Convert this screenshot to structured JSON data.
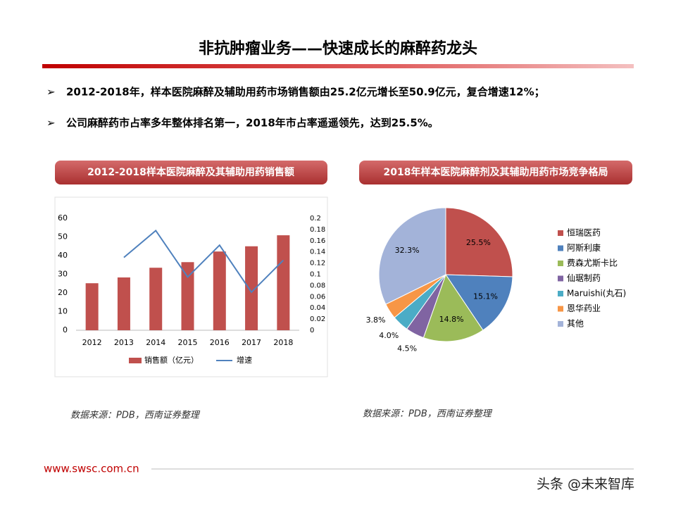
{
  "title": "非抗肿瘤业务——快速成长的麻醉药龙头",
  "bullets": [
    "2012-2018年，样本医院麻醉及辅助用药市场销售额由25.2亿元增长至50.9亿元，复合增速12%；",
    "公司麻醉药市占率多年整体排名第一，2018年市占率遥遥领先，达到25.5%。"
  ],
  "chart_data": [
    {
      "type": "bar",
      "title": "2012-2018样本医院麻醉及其辅助用药销售额",
      "categories": [
        "2012",
        "2013",
        "2014",
        "2015",
        "2016",
        "2017",
        "2018"
      ],
      "series": [
        {
          "name": "销售额（亿元）",
          "color": "#c0504d",
          "values": [
            25.2,
            28.3,
            33.5,
            36.5,
            42.2,
            45.0,
            50.9
          ]
        },
        {
          "name": "增速",
          "color": "#4f81bd",
          "axis": "y2",
          "type": "line",
          "values": [
            null,
            0.13,
            0.178,
            0.095,
            0.152,
            0.068,
            0.125
          ]
        }
      ],
      "ylim": [
        0,
        60
      ],
      "yticks": [
        0,
        10,
        20,
        30,
        40,
        50,
        60
      ],
      "y2lim": [
        0,
        0.2
      ],
      "y2ticks": [
        0,
        0.02,
        0.04,
        0.06,
        0.08,
        0.1,
        0.12,
        0.14,
        0.16,
        0.18,
        0.2
      ],
      "source": "数据来源：PDB，西南证券整理"
    },
    {
      "type": "pie",
      "title": "2018年样本医院麻醉剂及其辅助用药市场竞争格局",
      "categories": [
        "恒瑞医药",
        "阿斯利康",
        "费森尤斯卡比",
        "仙琚制药",
        "Maruishi(丸石)",
        "恩华药业",
        "其他"
      ],
      "values": [
        25.5,
        15.1,
        14.8,
        4.5,
        4.0,
        3.8,
        32.3
      ],
      "value_labels": [
        "25.5%",
        "15.1%",
        "14.8%",
        "4.5%",
        "4.0%",
        "3.8%",
        "32.3%"
      ],
      "colors": [
        "#c0504d",
        "#4f81bd",
        "#9bbb59",
        "#8064a2",
        "#4bacc6",
        "#f79646",
        "#a3b3d9"
      ],
      "source": "数据来源：PDB，西南证券整理"
    }
  ],
  "footer": {
    "url": "www.swsc.com.cn",
    "watermark": "头条 @未来智库"
  }
}
